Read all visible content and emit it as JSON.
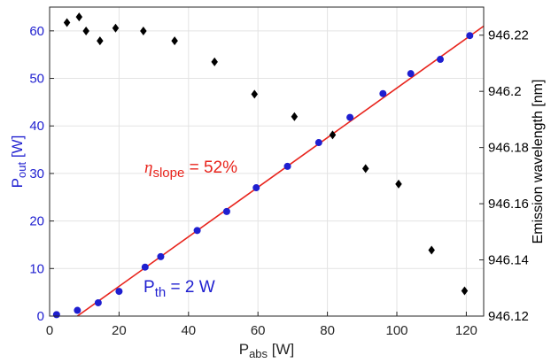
{
  "chart_data": {
    "type": "scatter",
    "x_axis": {
      "label_main": "P",
      "label_sub": "abs",
      "label_unit": " [W]",
      "range": [
        0,
        125
      ],
      "ticks": [
        0,
        20,
        40,
        60,
        80,
        100,
        120
      ]
    },
    "y_axis_left": {
      "label_main": "P",
      "label_sub": "out",
      "label_unit": " [W]",
      "color": "#1f1fd0",
      "range": [
        0,
        65
      ],
      "ticks": [
        0,
        10,
        20,
        30,
        40,
        50,
        60
      ]
    },
    "y_axis_right": {
      "label": "Emission wavelength [nm]",
      "color": "#000000",
      "range": [
        946.12,
        946.23
      ],
      "ticks": [
        946.12,
        946.14,
        946.16,
        946.18,
        946.2,
        946.22
      ],
      "tick_labels": [
        "946.12",
        "946.14",
        "946.16",
        "946.18",
        "946.2",
        "946.22"
      ]
    },
    "grid": true,
    "series": [
      {
        "axis": "left",
        "marker": "circle",
        "color": "#1f1fd0",
        "points": [
          [
            2,
            0.3
          ],
          [
            8,
            1.2
          ],
          [
            14,
            2.8
          ],
          [
            20,
            5.2
          ],
          [
            27.5,
            10.3
          ],
          [
            32,
            12.5
          ],
          [
            42.5,
            18
          ],
          [
            51,
            22
          ],
          [
            59.5,
            27
          ],
          [
            68.5,
            31.5
          ],
          [
            77.5,
            36.5
          ],
          [
            86.5,
            41.8
          ],
          [
            96,
            46.8
          ],
          [
            104,
            51
          ],
          [
            112.5,
            54
          ],
          [
            121,
            59
          ]
        ]
      },
      {
        "axis": "right",
        "marker": "diamond",
        "color": "#000000",
        "points": [
          [
            5,
            946.2245
          ],
          [
            8.5,
            946.2265
          ],
          [
            10.5,
            946.2215
          ],
          [
            14.5,
            946.218
          ],
          [
            19,
            946.2225
          ],
          [
            27,
            946.2215
          ],
          [
            36,
            946.218
          ],
          [
            47.5,
            946.2105
          ],
          [
            59,
            946.199
          ],
          [
            70.5,
            946.191
          ],
          [
            81.5,
            946.1845
          ],
          [
            91,
            946.1725
          ],
          [
            100.5,
            946.167
          ],
          [
            110,
            946.1435
          ],
          [
            119.5,
            946.129
          ]
        ]
      }
    ],
    "fit_line": {
      "color": "#e8241c",
      "x": [
        8,
        125
      ],
      "y": [
        0,
        61
      ]
    },
    "annotations": {
      "slope": {
        "symbol": "η",
        "sub": "slope",
        "rest": " = 52%",
        "color": "#e8241c"
      },
      "threshold": {
        "main": "P",
        "sub": "th",
        "rest": " = 2 W",
        "color": "#1f1fd0"
      }
    }
  }
}
